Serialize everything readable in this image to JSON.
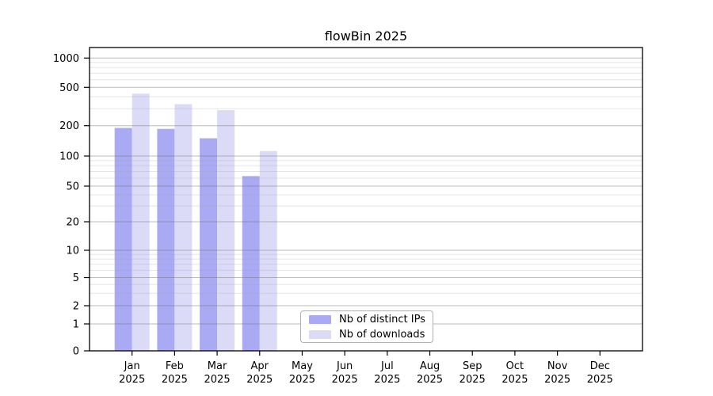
{
  "chart_data": {
    "type": "bar",
    "title": "flowBin 2025",
    "categories": [
      "Jan",
      "Feb",
      "Mar",
      "Apr",
      "May",
      "Jun",
      "Jul",
      "Aug",
      "Sep",
      "Oct",
      "Nov",
      "Dec"
    ],
    "category_year": "2025",
    "series": [
      {
        "name": "Nb of distinct IPs",
        "color": "#a9a9f4",
        "values": [
          190,
          186,
          150,
          63,
          0,
          0,
          0,
          0,
          0,
          0,
          0,
          0
        ]
      },
      {
        "name": "Nb of downloads",
        "color": "#dbdbf8",
        "values": [
          430,
          335,
          290,
          112,
          0,
          0,
          0,
          0,
          0,
          0,
          0,
          0
        ]
      }
    ],
    "y_axis": {
      "scale": "log-like (0,1..1000)",
      "ticks": [
        0,
        1,
        2,
        5,
        10,
        20,
        50,
        100,
        200,
        500,
        1000
      ],
      "ylim": [
        0,
        1300
      ]
    },
    "x_axis": {
      "tick_label_format": "Month over Year, two lines"
    },
    "grid": {
      "major": true,
      "minor": true,
      "major_color": "#bdbdbd",
      "minor_color": "#e9e9e9"
    },
    "legend": {
      "position": "inside lower-center"
    }
  }
}
